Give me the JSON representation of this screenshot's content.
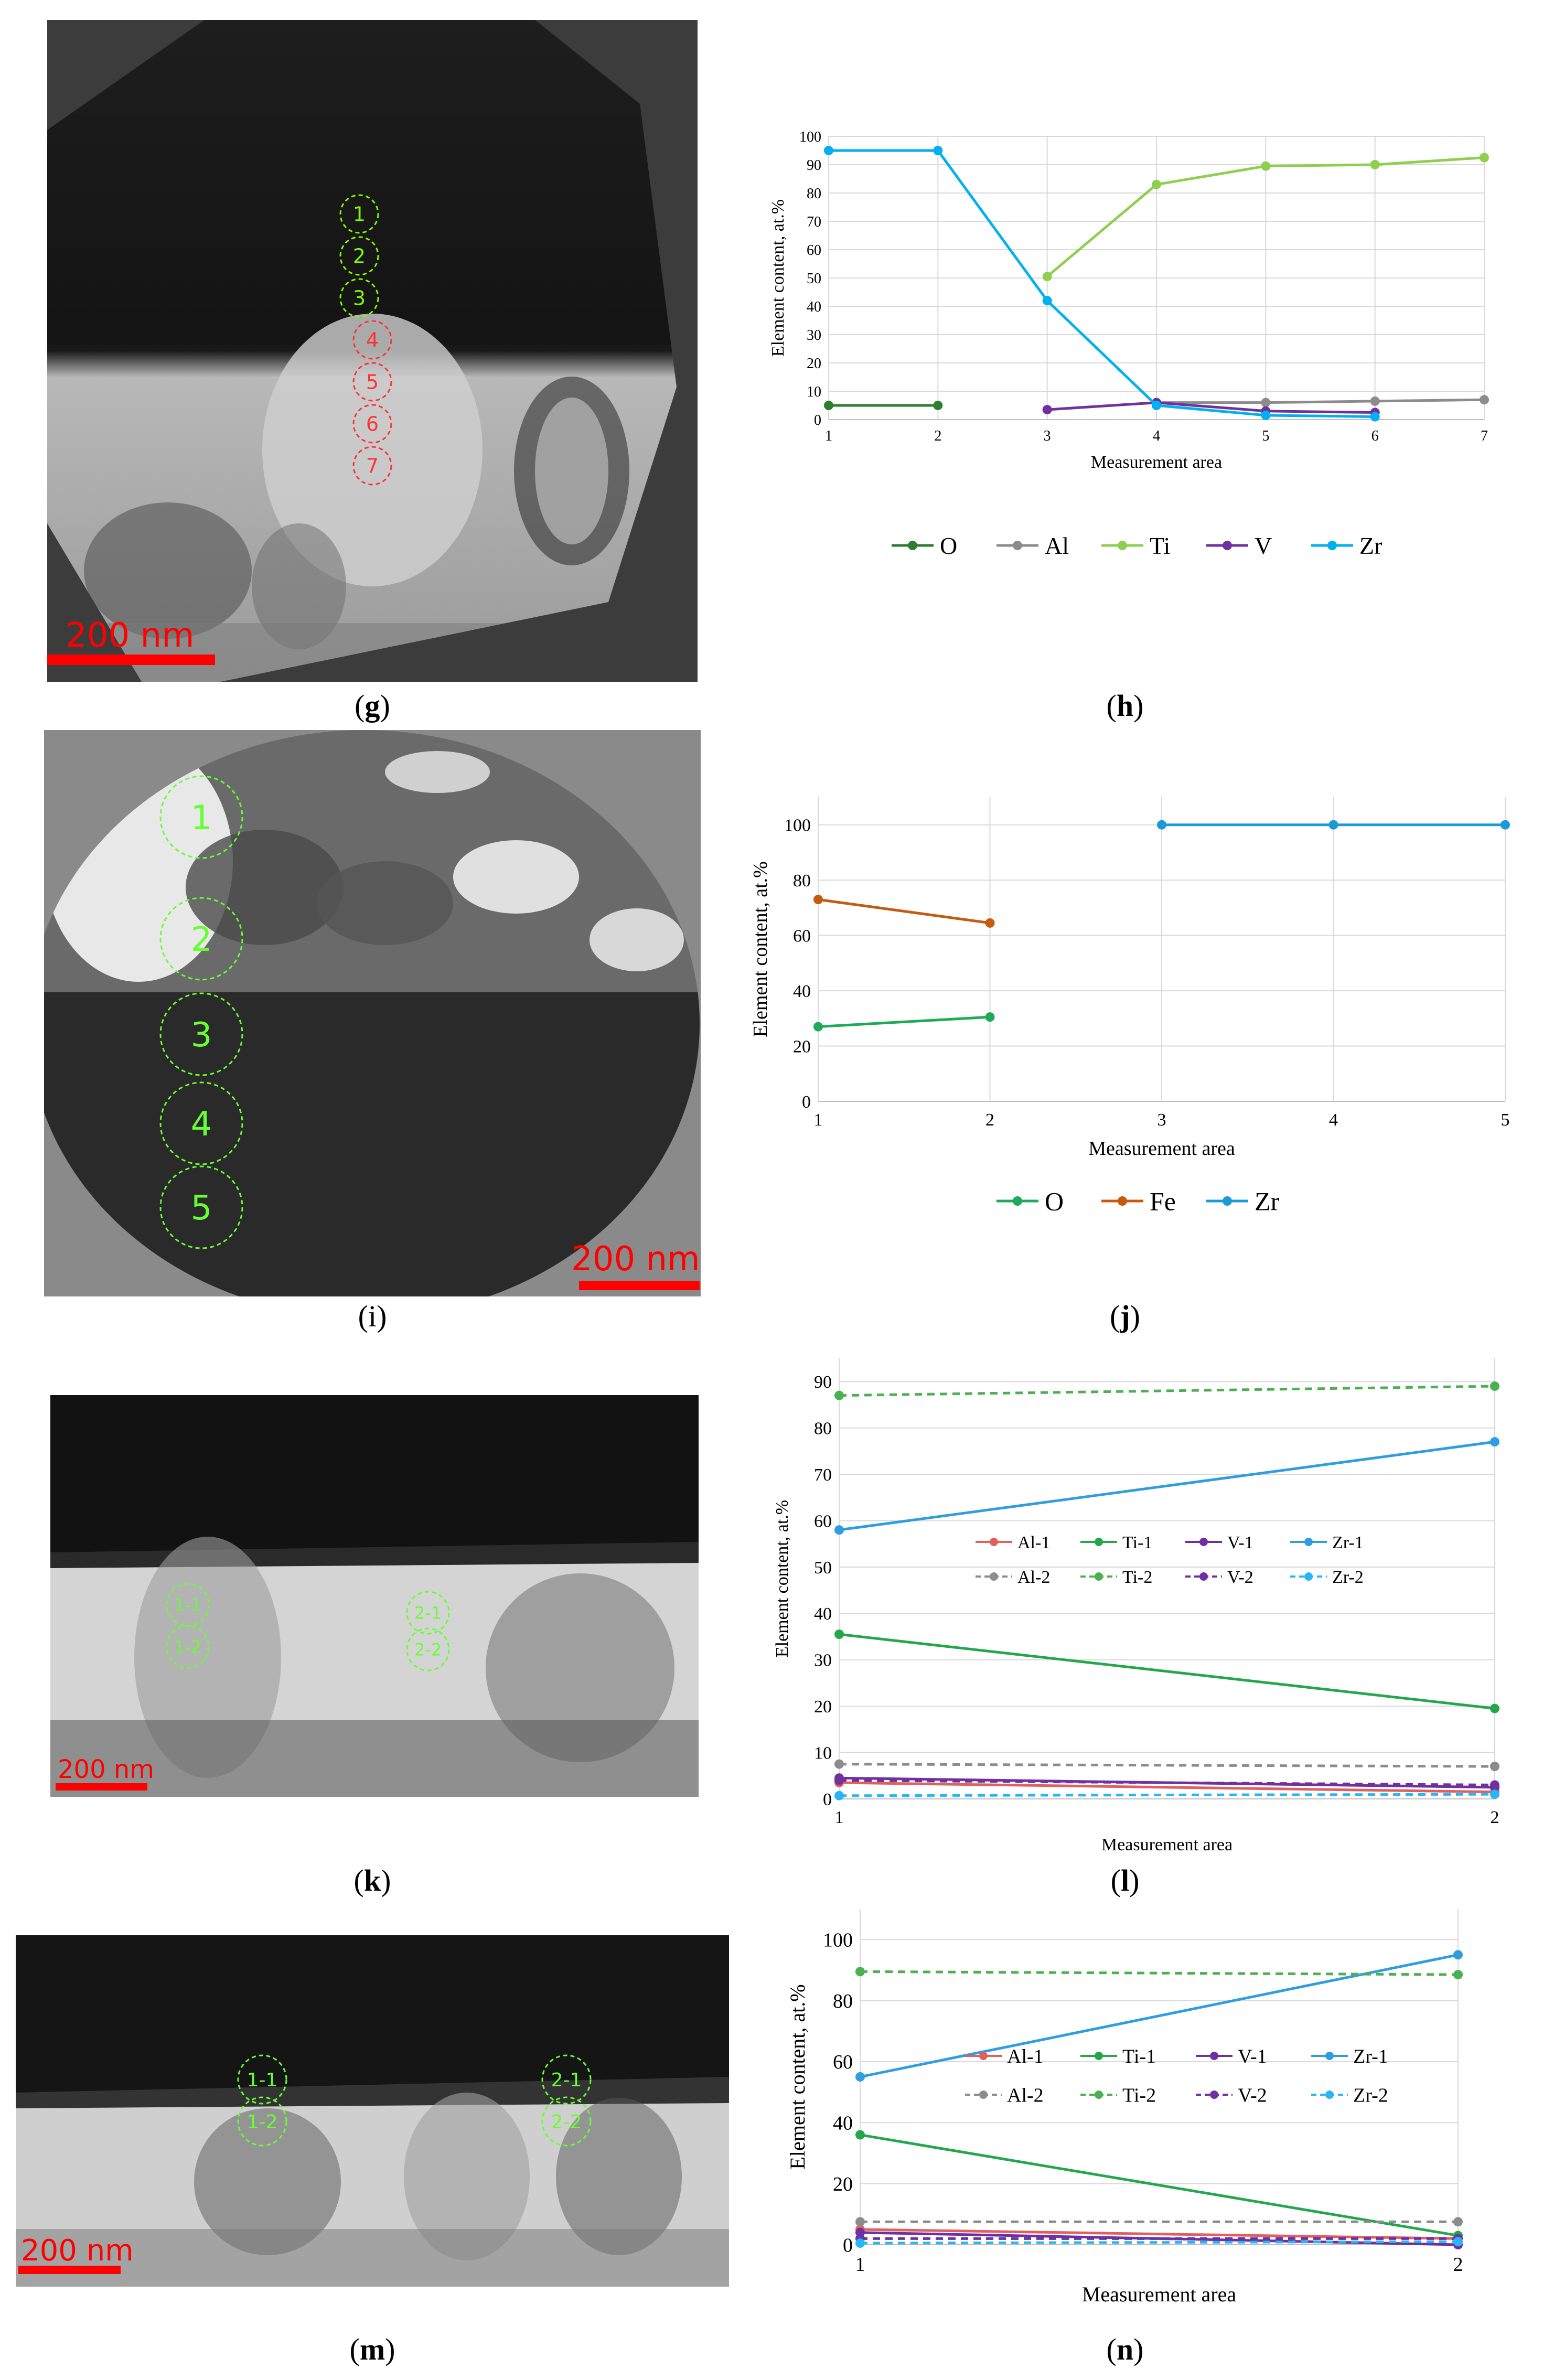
{
  "panels": {
    "g": {
      "caption": "g",
      "scale_label": "200 nm",
      "markers": [
        "1",
        "2",
        "3",
        "4",
        "5",
        "6",
        "7"
      ]
    },
    "i": {
      "caption": "i",
      "scale_label": "200 nm",
      "markers": [
        "1",
        "2",
        "3",
        "4",
        "5"
      ]
    },
    "k": {
      "caption": "k",
      "scale_label": "200 nm",
      "markers": [
        "1-1",
        "1-2",
        "2-1",
        "2-2"
      ]
    },
    "m": {
      "caption": "m",
      "scale_label": "200 nm",
      "markers": [
        "1-1",
        "1-2",
        "2-1",
        "2-2"
      ]
    }
  },
  "colors": {
    "O_h": "#2e7d32",
    "Al": "#8c8c8c",
    "Ti_h": "#8fcf4f",
    "V": "#7030a0",
    "Zr": "#00b0f0",
    "O_j": "#1faa59",
    "Fe": "#c55a11",
    "Zr_j": "#1a9ad6",
    "Al1_marker": "#e06060",
    "Ti1": "#22a84a",
    "Ti2": "#4caf50",
    "Zr1": "#2f9ee0",
    "Zr2": "#29b6f6"
  },
  "chart_data": [
    {
      "id": "h",
      "caption": "h",
      "type": "line",
      "xlabel": "Measurement area",
      "ylabel": "Element content, at.%",
      "xlim": [
        1,
        7
      ],
      "ylim": [
        0,
        100
      ],
      "xticks": [
        "1",
        "2",
        "3",
        "4",
        "5",
        "6",
        "7"
      ],
      "yticks": [
        "0",
        "10",
        "20",
        "30",
        "40",
        "50",
        "60",
        "70",
        "80",
        "90",
        "100"
      ],
      "legend": "bottom",
      "series": [
        {
          "name": "O",
          "color": "#2e7d32",
          "dash": false,
          "points": [
            [
              1,
              5
            ],
            [
              2,
              5
            ]
          ]
        },
        {
          "name": "Al",
          "color": "#8c8c8c",
          "dash": false,
          "points": [
            [
              4,
              6
            ],
            [
              5,
              6
            ],
            [
              6,
              6.5
            ],
            [
              7,
              7
            ]
          ]
        },
        {
          "name": "Ti",
          "color": "#8fcf4f",
          "dash": false,
          "points": [
            [
              3,
              50.5
            ],
            [
              4,
              83
            ],
            [
              5,
              89.5
            ],
            [
              6,
              90
            ],
            [
              7,
              92.5
            ]
          ]
        },
        {
          "name": "V",
          "color": "#7030a0",
          "dash": false,
          "points": [
            [
              3,
              3.5
            ],
            [
              4,
              6
            ],
            [
              5,
              3
            ],
            [
              6,
              2.5
            ]
          ]
        },
        {
          "name": "Zr",
          "color": "#00b0f0",
          "dash": false,
          "points": [
            [
              1,
              95
            ],
            [
              2,
              95
            ],
            [
              3,
              42
            ],
            [
              4,
              5
            ],
            [
              5,
              1.5
            ],
            [
              6,
              1
            ]
          ]
        }
      ]
    },
    {
      "id": "j",
      "caption": "j",
      "type": "line",
      "xlabel": "Measurement area",
      "ylabel": "Element content, at.%",
      "xlim": [
        1,
        5
      ],
      "ylim": [
        0,
        110
      ],
      "xticks": [
        "1",
        "2",
        "3",
        "4",
        "5"
      ],
      "yticks": [
        "0",
        "20",
        "40",
        "60",
        "80",
        "100"
      ],
      "legend": "bottom",
      "series": [
        {
          "name": "O",
          "color": "#1faa59",
          "dash": false,
          "points": [
            [
              1,
              27
            ],
            [
              2,
              30.5
            ]
          ]
        },
        {
          "name": "Fe",
          "color": "#c55a11",
          "dash": false,
          "points": [
            [
              1,
              73
            ],
            [
              2,
              64.5
            ]
          ]
        },
        {
          "name": "Zr",
          "color": "#1a9ad6",
          "dash": false,
          "points": [
            [
              3,
              100
            ],
            [
              4,
              100
            ],
            [
              5,
              100
            ]
          ]
        }
      ]
    },
    {
      "id": "l",
      "caption": "l",
      "type": "line",
      "xlabel": "Measurement area",
      "ylabel": "Element content, at.%",
      "xlim": [
        1,
        2
      ],
      "ylim": [
        0,
        95
      ],
      "xticks": [
        "1",
        "2"
      ],
      "yticks": [
        "0",
        "10",
        "20",
        "30",
        "40",
        "50",
        "60",
        "70",
        "80",
        "90"
      ],
      "legend": "inside-right",
      "series": [
        {
          "name": "Al-1",
          "color": "#e06060",
          "dash": false,
          "points": [
            [
              1,
              3.5
            ],
            [
              2,
              1.5
            ]
          ]
        },
        {
          "name": "Ti-1",
          "color": "#22a84a",
          "dash": false,
          "points": [
            [
              1,
              35.5
            ],
            [
              2,
              19.5
            ]
          ]
        },
        {
          "name": "V-1",
          "color": "#7030a0",
          "dash": false,
          "points": [
            [
              1,
              4.5
            ],
            [
              2,
              2.5
            ]
          ]
        },
        {
          "name": "Zr-1",
          "color": "#2f9ee0",
          "dash": false,
          "points": [
            [
              1,
              58
            ],
            [
              2,
              77
            ]
          ]
        },
        {
          "name": "Al-2",
          "color": "#8c8c8c",
          "dash": true,
          "points": [
            [
              1,
              7.5
            ],
            [
              2,
              7
            ]
          ]
        },
        {
          "name": "Ti-2",
          "color": "#4caf50",
          "dash": true,
          "points": [
            [
              1,
              87
            ],
            [
              2,
              89
            ]
          ]
        },
        {
          "name": "V-2",
          "color": "#7030a0",
          "dash": true,
          "points": [
            [
              1,
              4
            ],
            [
              2,
              3
            ]
          ]
        },
        {
          "name": "Zr-2",
          "color": "#29b6f6",
          "dash": true,
          "points": [
            [
              1,
              0.7
            ],
            [
              2,
              1
            ]
          ]
        }
      ]
    },
    {
      "id": "n",
      "caption": "n",
      "type": "line",
      "xlabel": "Measurement area",
      "ylabel": "Element content, at.%",
      "xlim": [
        1,
        2
      ],
      "ylim": [
        0,
        110
      ],
      "xticks": [
        "1",
        "2"
      ],
      "yticks": [
        "0",
        "20",
        "40",
        "60",
        "80",
        "100"
      ],
      "legend": "inside-right",
      "series": [
        {
          "name": "Al-1",
          "color": "#e06060",
          "dash": false,
          "points": [
            [
              1,
              5
            ],
            [
              2,
              2
            ]
          ]
        },
        {
          "name": "Ti-1",
          "color": "#22a84a",
          "dash": false,
          "points": [
            [
              1,
              36
            ],
            [
              2,
              3
            ]
          ]
        },
        {
          "name": "V-1",
          "color": "#7030a0",
          "dash": false,
          "points": [
            [
              1,
              4
            ],
            [
              2,
              0
            ]
          ]
        },
        {
          "name": "Zr-1",
          "color": "#2f9ee0",
          "dash": false,
          "points": [
            [
              1,
              55
            ],
            [
              2,
              95
            ]
          ]
        },
        {
          "name": "Al-2",
          "color": "#8c8c8c",
          "dash": true,
          "points": [
            [
              1,
              7.5
            ],
            [
              2,
              7.5
            ]
          ]
        },
        {
          "name": "Ti-2",
          "color": "#4caf50",
          "dash": true,
          "points": [
            [
              1,
              89.5
            ],
            [
              2,
              88.5
            ]
          ]
        },
        {
          "name": "V-2",
          "color": "#7030a0",
          "dash": true,
          "points": [
            [
              1,
              2
            ],
            [
              2,
              2
            ]
          ]
        },
        {
          "name": "Zr-2",
          "color": "#29b6f6",
          "dash": true,
          "points": [
            [
              1,
              0.5
            ],
            [
              2,
              1
            ]
          ]
        }
      ]
    }
  ]
}
